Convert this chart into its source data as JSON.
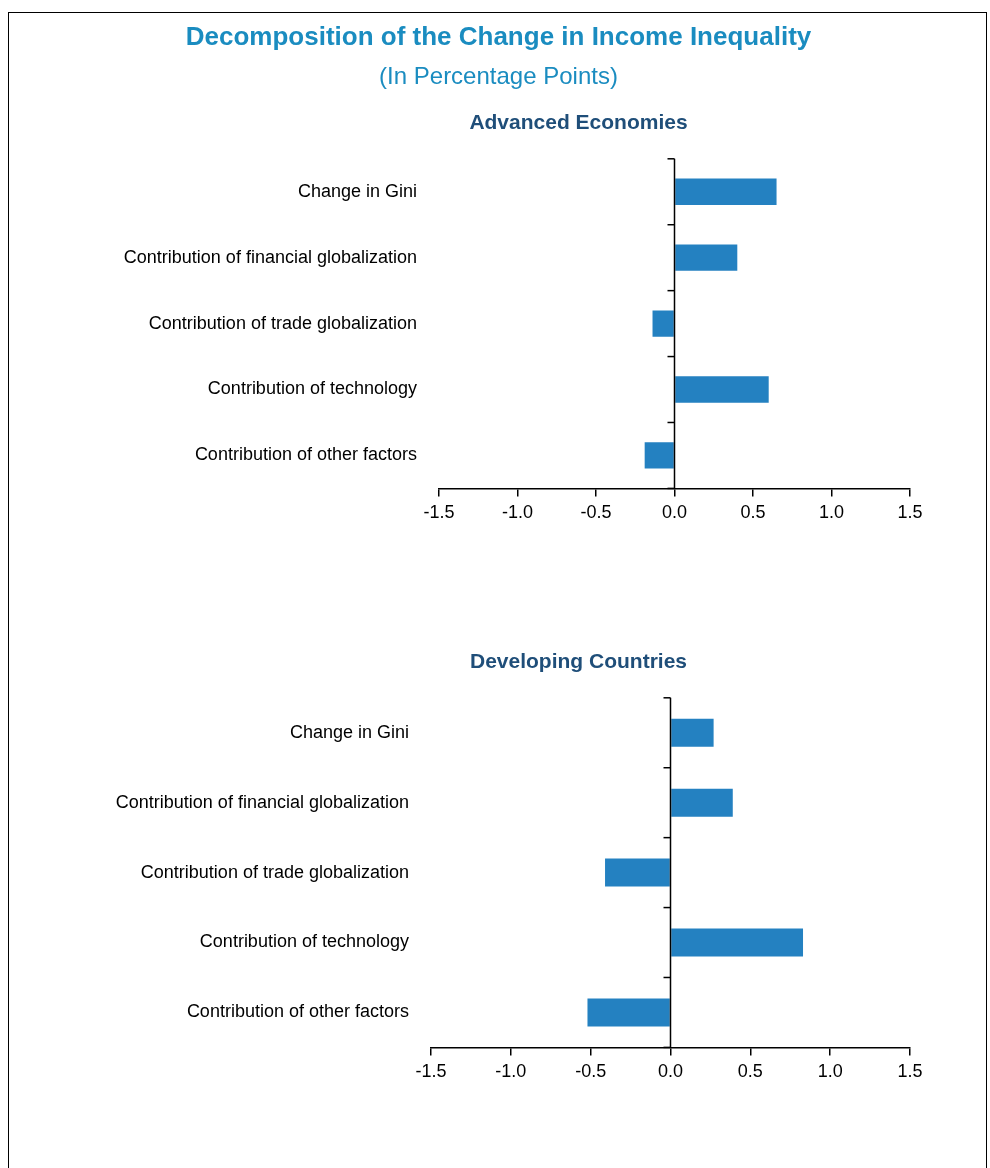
{
  "chart_data": [
    {
      "type": "bar",
      "orientation": "horizontal",
      "title": "Decomposition of the Change in Income Inequality",
      "subtitle": "(In Percentage Points)",
      "annotations": [
        "Advanced Economies"
      ],
      "categories": [
        "Change in Gini",
        "Contribution of financial globalization",
        "Contribution of trade globalization",
        "Contribution of technology",
        "Contribution of other factors"
      ],
      "values": [
        0.65,
        0.4,
        -0.14,
        0.6,
        -0.19
      ],
      "color": "#2481c1",
      "xlim": [
        -1.5,
        1.5
      ],
      "xticks": [
        {
          "value": -1.5,
          "label": "-1.5"
        },
        {
          "value": -1.0,
          "label": "-1.0"
        },
        {
          "value": -0.5,
          "label": "-0.5"
        },
        {
          "value": 0,
          "label": "0.0"
        },
        {
          "value": 0.5,
          "label": "0.5"
        },
        {
          "value": 1.0,
          "label": "1.0"
        },
        {
          "value": 1.5,
          "label": "1.5"
        }
      ]
    },
    {
      "type": "bar",
      "orientation": "horizontal",
      "title": "Developing Countries",
      "categories": [
        "Change in Gini",
        "Contribution of financial globalization",
        "Contribution of trade globalization",
        "Contribution of technology",
        "Contribution of other factors"
      ],
      "values": [
        0.27,
        0.39,
        -0.41,
        0.83,
        -0.52
      ],
      "color": "#2481c1",
      "xlim": [
        -1.5,
        1.5
      ],
      "xticks": [
        {
          "value": -1.5,
          "label": "-1.5"
        },
        {
          "value": -1.0,
          "label": "-1.0"
        },
        {
          "value": -0.5,
          "label": "-0.5"
        },
        {
          "value": 0,
          "label": "0.0"
        },
        {
          "value": 0.5,
          "label": "0.5"
        },
        {
          "value": 1.0,
          "label": "1.0"
        },
        {
          "value": 1.5,
          "label": "1.5"
        }
      ]
    }
  ]
}
